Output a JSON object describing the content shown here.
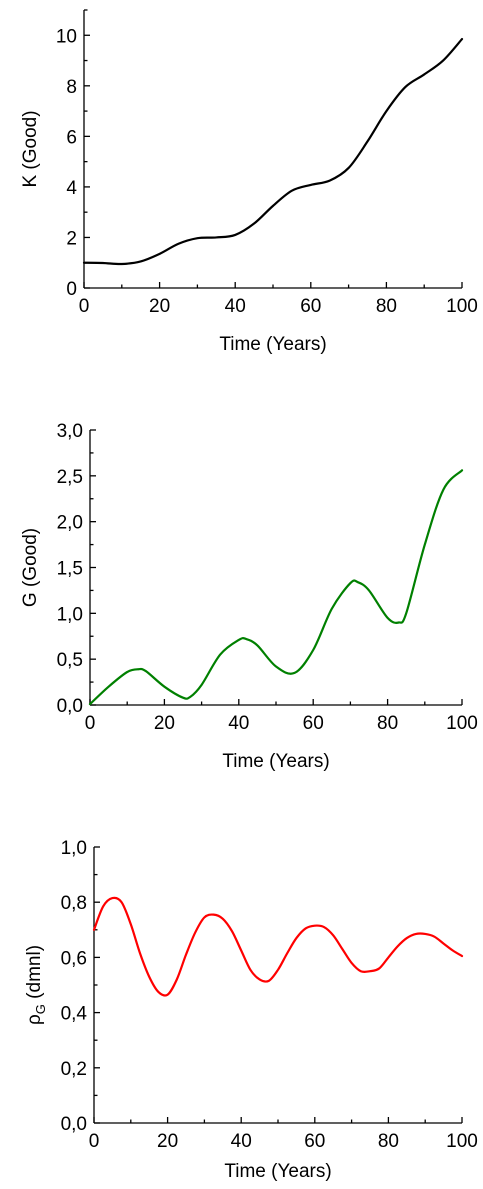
{
  "chart_data": [
    {
      "type": "line",
      "xlabel": "Time (Years)",
      "ylabel": "K (Good)",
      "xlim": [
        0,
        100
      ],
      "ylim": [
        0,
        11
      ],
      "x_ticks": [
        "0",
        "20",
        "40",
        "60",
        "80",
        "100"
      ],
      "y_ticks": [
        "0",
        "2",
        "4",
        "6",
        "8",
        "10"
      ],
      "color": "#000000",
      "x": [
        0,
        5,
        10,
        15,
        20,
        25,
        30,
        35,
        40,
        45,
        50,
        55,
        60,
        65,
        70,
        75,
        80,
        85,
        90,
        95,
        100
      ],
      "series": [
        {
          "values": [
            1.0,
            0.99,
            0.95,
            1.05,
            1.35,
            1.75,
            1.97,
            2.0,
            2.1,
            2.55,
            3.25,
            3.85,
            4.08,
            4.25,
            4.75,
            5.8,
            7.0,
            7.95,
            8.45,
            9.0,
            9.85
          ]
        }
      ]
    },
    {
      "type": "line",
      "xlabel": "Time (Years)",
      "ylabel": "G (Good)",
      "xlim": [
        0,
        100
      ],
      "ylim": [
        0,
        3.0
      ],
      "x_ticks": [
        "0",
        "20",
        "40",
        "60",
        "80",
        "100"
      ],
      "y_ticks": [
        "0,0",
        "0,5",
        "1,0",
        "1,5",
        "2,0",
        "2,5",
        "3,0"
      ],
      "color": "#008000",
      "x": [
        0,
        5,
        10,
        13,
        15,
        20,
        25,
        27,
        30,
        35,
        40,
        42,
        45,
        50,
        55,
        60,
        65,
        70,
        72,
        75,
        80,
        83,
        85,
        90,
        95,
        100
      ],
      "series": [
        {
          "values": [
            0.01,
            0.2,
            0.36,
            0.39,
            0.37,
            0.2,
            0.08,
            0.09,
            0.22,
            0.55,
            0.71,
            0.72,
            0.65,
            0.42,
            0.35,
            0.6,
            1.05,
            1.33,
            1.34,
            1.25,
            0.95,
            0.9,
            1.0,
            1.75,
            2.35,
            2.56
          ]
        }
      ]
    },
    {
      "type": "line",
      "xlabel": "Time (Years)",
      "ylabel": "ρG (dmnl)",
      "ylabel_main": "ρ",
      "ylabel_sub": "G",
      "ylabel_unit": " (dmnl)",
      "xlim": [
        0,
        100
      ],
      "ylim": [
        0,
        1.0
      ],
      "x_ticks": [
        "0",
        "20",
        "40",
        "60",
        "80",
        "100"
      ],
      "y_ticks": [
        "0,0",
        "0,2",
        "0,4",
        "0,6",
        "0,8",
        "1,0"
      ],
      "color": "#ff0000",
      "x": [
        0,
        2.5,
        5,
        7.5,
        10,
        12.5,
        15,
        17.5,
        20,
        22.5,
        25,
        27.5,
        30,
        32.5,
        35,
        37.5,
        40,
        42.5,
        45,
        47.5,
        50,
        52.5,
        55,
        57.5,
        60,
        62.5,
        65,
        67.5,
        70,
        72.5,
        75,
        77.5,
        80,
        82.5,
        85,
        87.5,
        90,
        92.5,
        95,
        97.5,
        100
      ],
      "series": [
        {
          "values": [
            0.7,
            0.785,
            0.815,
            0.8,
            0.72,
            0.615,
            0.53,
            0.475,
            0.465,
            0.52,
            0.61,
            0.69,
            0.745,
            0.755,
            0.74,
            0.695,
            0.625,
            0.555,
            0.52,
            0.515,
            0.555,
            0.615,
            0.67,
            0.705,
            0.715,
            0.71,
            0.68,
            0.63,
            0.58,
            0.55,
            0.55,
            0.56,
            0.6,
            0.64,
            0.67,
            0.685,
            0.685,
            0.675,
            0.65,
            0.625,
            0.605
          ]
        }
      ]
    }
  ]
}
